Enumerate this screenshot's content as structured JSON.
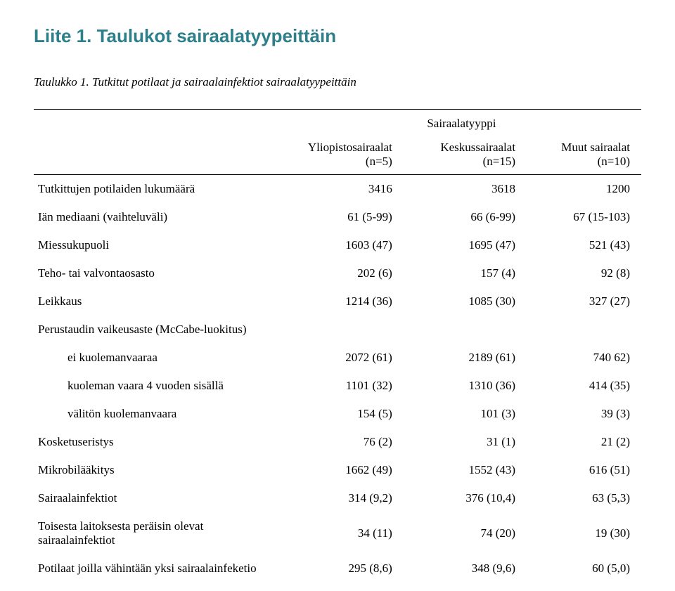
{
  "heading": "Liite 1. Taulukot sairaalatyypeittäin",
  "caption": "Taulukko 1. Tutkitut potilaat ja sairaalainfektiot sairaalatyypeittäin",
  "superheader": "Sairaalatyyppi",
  "columns": {
    "c1": "Yliopistosairaalat (n=5)",
    "c2": "Keskussairaalat (n=15)",
    "c3": "Muut sairaalat (n=10)"
  },
  "rows": {
    "r0": {
      "label": "Tutkittujen potilaiden lukumäärä",
      "c1": "3416",
      "c2": "3618",
      "c3": "1200"
    },
    "r1": {
      "label": "Iän mediaani (vaihteluväli)",
      "c1": "61 (5-99)",
      "c2": "66 (6-99)",
      "c3": "67 (15-103)"
    },
    "r2": {
      "label": "Miessukupuoli",
      "c1": "1603 (47)",
      "c2": "1695 (47)",
      "c3": "521 (43)"
    },
    "r3": {
      "label": "Teho- tai valvontaosasto",
      "c1": "202 (6)",
      "c2": "157 (4)",
      "c3": "92 (8)"
    },
    "r4": {
      "label": "Leikkaus",
      "c1": "1214 (36)",
      "c2": "1085 (30)",
      "c3": "327 (27)"
    },
    "r5": {
      "label": "Perustaudin vaikeusaste (McCabe-luokitus)",
      "c1": "",
      "c2": "",
      "c3": ""
    },
    "r6": {
      "label": "ei kuolemanvaaraa",
      "c1": "2072 (61)",
      "c2": "2189 (61)",
      "c3": "740 62)"
    },
    "r7": {
      "label": "kuoleman vaara 4 vuoden sisällä",
      "c1": "1101 (32)",
      "c2": "1310 (36)",
      "c3": "414 (35)"
    },
    "r8": {
      "label": "välitön kuolemanvaara",
      "c1": "154 (5)",
      "c2": "101 (3)",
      "c3": "39 (3)"
    },
    "r9": {
      "label": "Kosketuseristys",
      "c1": "76 (2)",
      "c2": "31 (1)",
      "c3": "21 (2)"
    },
    "r10": {
      "label": "Mikrobilääkitys",
      "c1": "1662 (49)",
      "c2": "1552 (43)",
      "c3": "616 (51)"
    },
    "r11": {
      "label": "Sairaalainfektiot",
      "c1": "314 (9,2)",
      "c2": "376 (10,4)",
      "c3": "63 (5,3)"
    },
    "r12": {
      "label": "Toisesta laitoksesta peräisin olevat sairaalainfektiot",
      "c1": "34 (11)",
      "c2": "74 (20)",
      "c3": "19 (30)"
    },
    "r13": {
      "label": "Potilaat joilla vähintään yksi sairaalainfeketio",
      "c1": "295 (8,6)",
      "c2": "348 (9,6)",
      "c3": "60 (5,0)"
    }
  },
  "style": {
    "heading_color": "#2d7f8a",
    "heading_fontsize": 26,
    "body_fontsize": 17,
    "rule_color": "#000000",
    "background": "#ffffff"
  }
}
